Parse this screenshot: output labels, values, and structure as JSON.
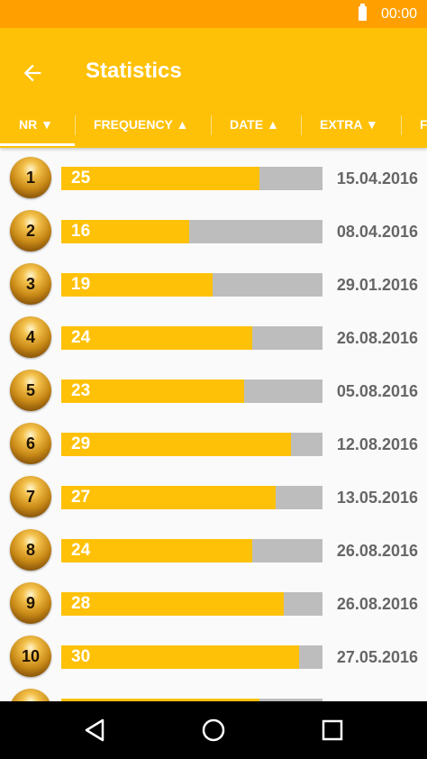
{
  "status_bar": {
    "time": "00:00"
  },
  "app_bar": {
    "title": "Statistics"
  },
  "tabs": [
    {
      "label": "NR ▼"
    },
    {
      "label": "FREQUENCY ▲"
    },
    {
      "label": "DATE ▲"
    },
    {
      "label": "EXTRA ▼"
    },
    {
      "label": "F"
    }
  ],
  "stats": [
    {
      "nr": "1",
      "frequency": "25",
      "date": "15.04.2016",
      "fill_percent": 76
    },
    {
      "nr": "2",
      "frequency": "16",
      "date": "08.04.2016",
      "fill_percent": 49
    },
    {
      "nr": "3",
      "frequency": "19",
      "date": "29.01.2016",
      "fill_percent": 58
    },
    {
      "nr": "4",
      "frequency": "24",
      "date": "26.08.2016",
      "fill_percent": 73
    },
    {
      "nr": "5",
      "frequency": "23",
      "date": "05.08.2016",
      "fill_percent": 70
    },
    {
      "nr": "6",
      "frequency": "29",
      "date": "12.08.2016",
      "fill_percent": 88
    },
    {
      "nr": "7",
      "frequency": "27",
      "date": "13.05.2016",
      "fill_percent": 82
    },
    {
      "nr": "8",
      "frequency": "24",
      "date": "26.08.2016",
      "fill_percent": 73
    },
    {
      "nr": "9",
      "frequency": "28",
      "date": "26.08.2016",
      "fill_percent": 85
    },
    {
      "nr": "10",
      "frequency": "30",
      "date": "27.05.2016",
      "fill_percent": 91
    },
    {
      "nr": "",
      "frequency": "",
      "date": "",
      "fill_percent": 76
    }
  ],
  "colors": {
    "accent": "#FFC107",
    "status_bar": "#FFA000",
    "bar_track": "#BDBDBD",
    "date_text": "#666666"
  },
  "icons": {
    "back": "arrow-back-icon",
    "nav_back": "triangle-back-icon",
    "nav_home": "circle-home-icon",
    "nav_recents": "square-recents-icon"
  }
}
